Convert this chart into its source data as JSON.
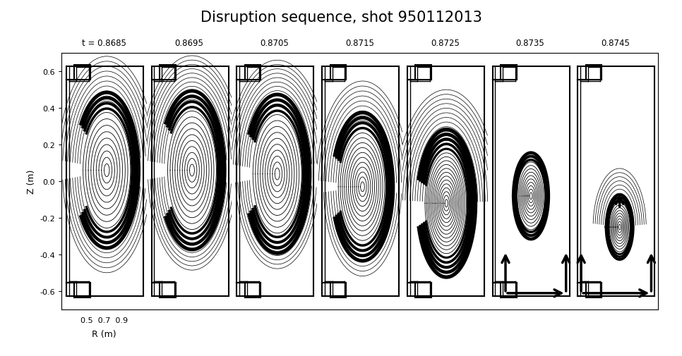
{
  "title": "Disruption sequence, shot 950112013",
  "times": [
    "t = 0.8685",
    "0.8695",
    "0.8705",
    "0.8715",
    "0.8725",
    "0.8735",
    "0.8745"
  ],
  "ylabel": "Z (m)",
  "xlabel": "R (m)",
  "ytick_labels": [
    "-0.6",
    "-0.4",
    "-0.2",
    "0.0",
    "0.2",
    "0.4",
    "0.6"
  ],
  "ytick_vals": [
    -0.6,
    -0.4,
    -0.2,
    0.0,
    0.2,
    0.4,
    0.6
  ],
  "xlim": [
    0.4,
    1.02
  ],
  "ylim": [
    -0.7,
    0.7
  ],
  "n_panels": 7,
  "figsize": [
    9.66,
    5.06
  ],
  "title_fontsize": 15,
  "label_fontsize": 9,
  "tick_fontsize": 8,
  "time_fontsize": 8.5
}
